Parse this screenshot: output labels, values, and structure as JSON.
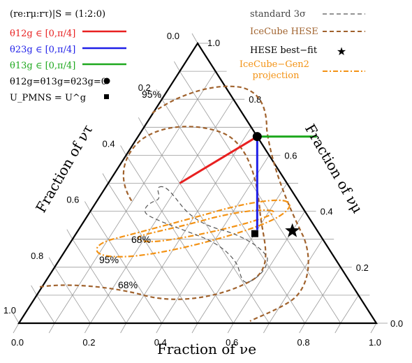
{
  "chart_data": {
    "type": "ternary",
    "title": "",
    "axes": {
      "bottom": {
        "label": "Fraction of νe",
        "ticks": [
          "0.0",
          "0.2",
          "0.4",
          "0.6",
          "0.8",
          "1.0"
        ]
      },
      "right": {
        "label": "Fraction of νμ",
        "ticks": [
          "0.0",
          "0.2",
          "0.4",
          "0.6",
          "0.8",
          "1.0"
        ]
      },
      "left": {
        "label": "Fraction of ντ",
        "ticks": [
          "0.0",
          "0.2",
          "0.4",
          "0.6",
          "0.8",
          "1.0"
        ]
      }
    },
    "grid": true,
    "grid_step": 0.1,
    "series": [
      {
        "name": "θ12g ∈ [0,π/4]",
        "color": "#e82020",
        "style": "solid",
        "points": [
          [
            0.3333,
            0.6667
          ],
          [
            0.2,
            0.5
          ]
        ]
      },
      {
        "name": "θ23g ∈ [0,π/4]",
        "color": "#1f1fe8",
        "style": "solid",
        "points": [
          [
            0.3333,
            0.6667
          ],
          [
            0.5,
            0.3333
          ]
        ]
      },
      {
        "name": "θ13g ∈ [0,π/4]",
        "color": "#1ea81e",
        "style": "solid",
        "points": [
          [
            0.3333,
            0.6667
          ],
          [
            0.5,
            0.6667
          ]
        ]
      }
    ],
    "markers": [
      {
        "name": "θ12g=θ13g=θ23g=0",
        "symbol": "circle",
        "point": [
          0.3333,
          0.6667
        ]
      },
      {
        "name": "U_PMNS = U^g",
        "symbol": "square",
        "point": [
          0.5,
          0.32
        ]
      },
      {
        "name": "HESE best-fit",
        "symbol": "star",
        "point": [
          0.6,
          0.33
        ]
      }
    ],
    "contours": [
      {
        "name": "IceCube HESE",
        "color": "#a0622d",
        "style": "dashed",
        "levels": [
          "68%",
          "95%"
        ]
      },
      {
        "name": "IceCube−Gen2 projection",
        "color": "#f39214",
        "style": "dashdot",
        "levels": [
          "68%",
          "95%"
        ]
      },
      {
        "name": "standard 3σ",
        "color": "#555555",
        "style": "dashed"
      }
    ],
    "contour_labels": [
      {
        "text": "95%",
        "color": "#a0622d"
      },
      {
        "text": "68%",
        "color": "#a0622d"
      },
      {
        "text": "68%",
        "color": "#f39214"
      },
      {
        "text": "95%",
        "color": "#f39214"
      }
    ],
    "legend_left": {
      "header": "(re:rμ:rτ)|S = (1:2:0)",
      "items": [
        {
          "label": "θ12g ∈ [0,π/4]",
          "color": "#e82020"
        },
        {
          "label": "θ23g ∈ [0,π/4]",
          "color": "#1f1fe8"
        },
        {
          "label": "θ13g ∈ [0,π/4]",
          "color": "#1ea81e"
        },
        {
          "label": "θ12g=θ13g=θ23g=0",
          "color": "#000000"
        },
        {
          "label": "U_PMNS = U^g",
          "color": "#000000"
        }
      ]
    },
    "legend_right": {
      "items": [
        {
          "label": "standard 3σ",
          "color": "#444444"
        },
        {
          "label": "IceCube HESE",
          "color": "#a0622d"
        },
        {
          "label": "HESE best−fit",
          "color": "#000000"
        },
        {
          "label": "IceCube−Gen2\nprojection",
          "color": "#f39214"
        }
      ]
    }
  }
}
